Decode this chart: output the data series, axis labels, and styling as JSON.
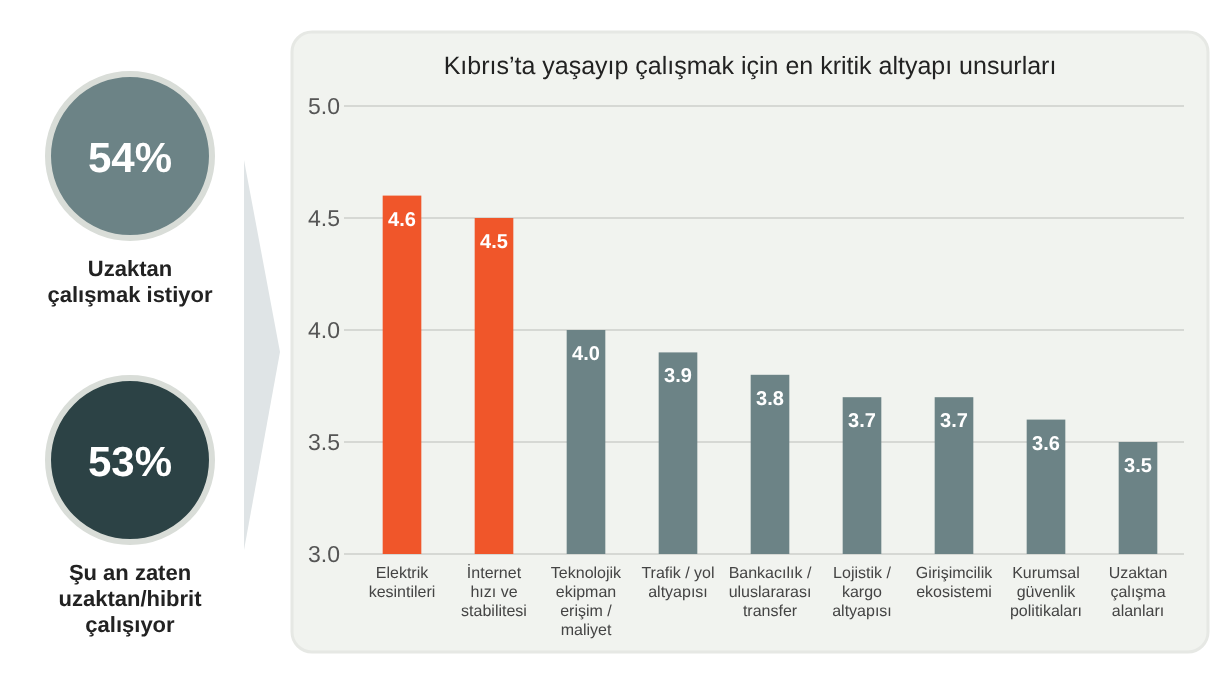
{
  "chart_data": [
    {
      "type": "other",
      "annotations": [
        "54%",
        "Uzaktan çalışmak istiyor",
        "53%",
        "Şu an zaten uzaktan/hibrit çalışıyor"
      ]
    },
    {
      "type": "bar",
      "title": "Kıbrıs’ta yaşayıp çalışmak için en kritik altyapı unsurları",
      "categories": [
        "Elektrik kesintileri",
        "İnternet hızı ve stabilitesi",
        "Teknolojik ekipman erişim / maliyet",
        "Trafik / yol altyapısı",
        "Bankacılık / uluslararası transfer",
        "Lojistik / kargo altyapısı",
        "Girişimcilik ekosistemi",
        "Kurumsal güvenlik politikaları",
        "Uzaktan çalışma alanları"
      ],
      "values": [
        4.6,
        4.5,
        4.0,
        3.9,
        3.8,
        3.7,
        3.7,
        3.6,
        3.5
      ],
      "colors": [
        "#f0562a",
        "#f0562a",
        "#6c8386",
        "#6c8386",
        "#6c8386",
        "#6c8386",
        "#6c8386",
        "#6c8386",
        "#6c8386"
      ],
      "ylim": [
        3.0,
        5.0
      ],
      "yticks": [
        {
          "value": 3,
          "label": "3.0"
        },
        3.5,
        {
          "value": 4,
          "label": "4.0"
        },
        4.5,
        {
          "value": 5,
          "label": "5.0"
        }
      ],
      "grid": "y",
      "value_labels": [
        "4.6",
        "4.5",
        "4.0",
        "3.9",
        "3.8",
        "3.7",
        "3.7",
        "3.6",
        "3.5"
      ]
    }
  ]
}
